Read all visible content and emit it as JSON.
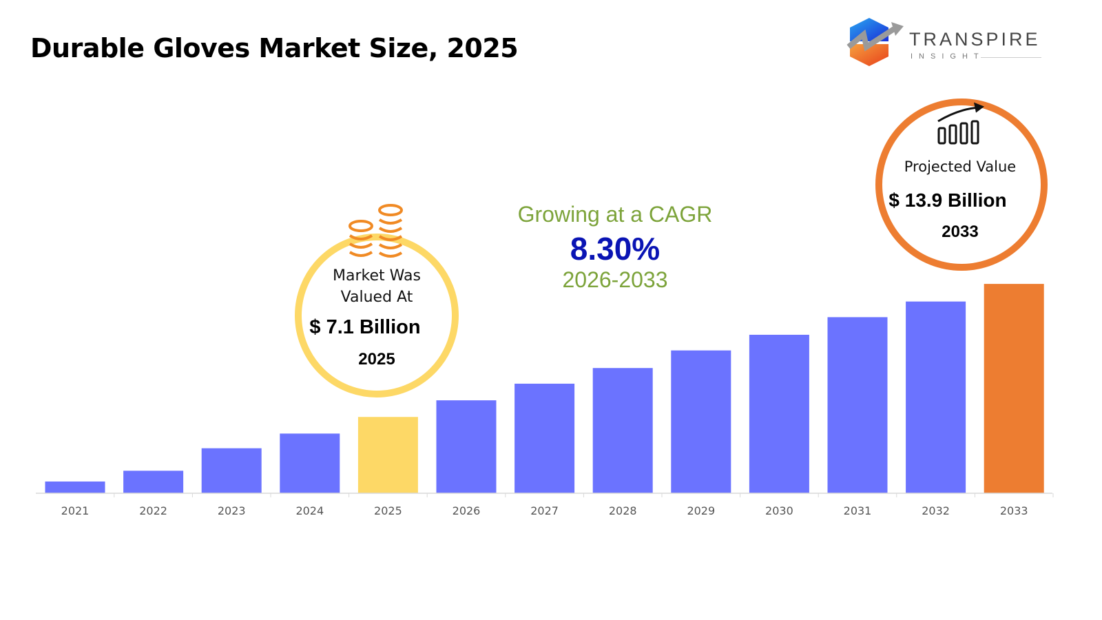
{
  "title": "Durable Gloves Market Size, 2025",
  "logo": {
    "name": "TRANSPIRE",
    "sub": "INSIGHT"
  },
  "cagr": {
    "label": "Growing at a CAGR",
    "value": "8.30%",
    "period": "2026-2033"
  },
  "market_valued": {
    "label_line1": "Market Was",
    "label_line2": "Valued At",
    "value": "$ 7.1 Billion",
    "year": "2025",
    "icon": "coin-stack-icon"
  },
  "projected": {
    "label": "Projected Value",
    "value": "$ 13.9 Billion",
    "year": "2033",
    "icon": "growth-bar-chart-icon"
  },
  "colors": {
    "bar": "#6B73FF",
    "highlight_2025": "#FDD866",
    "highlight_2033": "#ED7D31",
    "cagr_green": "#7CA33A",
    "cagr_blue": "#0A14B4"
  },
  "chart_data": {
    "type": "bar",
    "categories": [
      "2021",
      "2022",
      "2023",
      "2024",
      "2025",
      "2026",
      "2027",
      "2028",
      "2029",
      "2030",
      "2031",
      "2032",
      "2033"
    ],
    "values": [
      3.8,
      4.35,
      5.5,
      6.25,
      7.1,
      7.95,
      8.8,
      9.6,
      10.5,
      11.3,
      12.2,
      13.0,
      13.9
    ],
    "ylim": [
      3.2,
      14.5
    ],
    "xlabel": "",
    "ylabel": "",
    "grid": false,
    "y_axis_visible": false
  }
}
